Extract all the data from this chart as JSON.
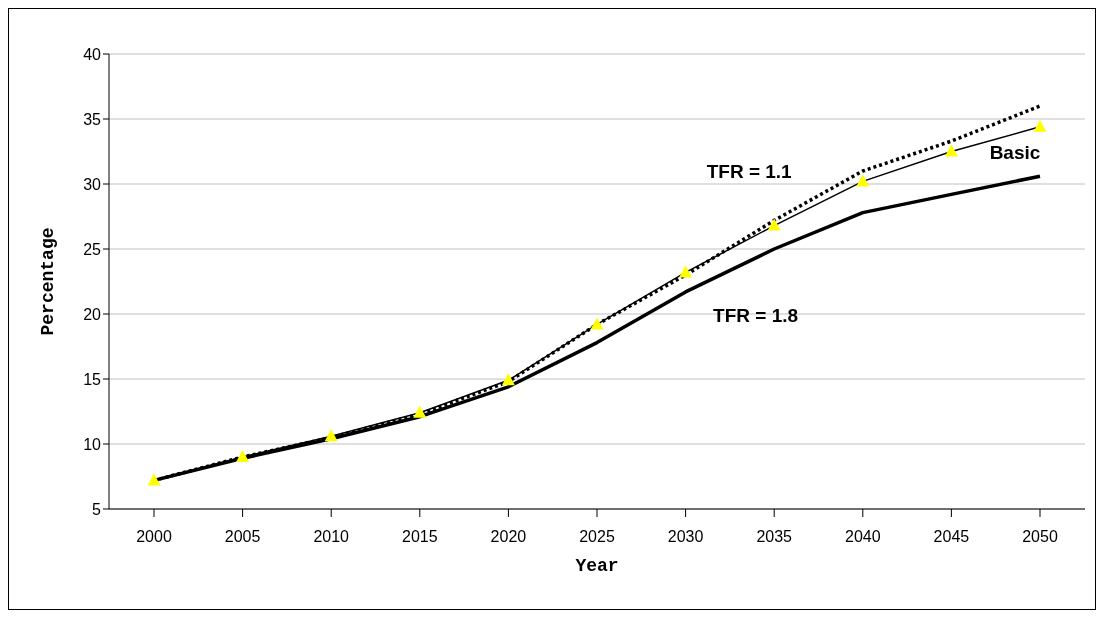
{
  "chart_data": {
    "type": "line",
    "xlabel": "Year",
    "ylabel": "Percentage",
    "categories": [
      "2000",
      "2005",
      "2010",
      "2015",
      "2020",
      "2025",
      "2030",
      "2035",
      "2040",
      "2045",
      "2050"
    ],
    "series": [
      {
        "name": "Basic",
        "color": "#000000",
        "marker": "triangle",
        "line_style": "solid",
        "values": [
          7.2,
          9.0,
          10.6,
          12.4,
          14.9,
          19.2,
          23.2,
          26.8,
          30.2,
          32.5,
          34.4
        ]
      },
      {
        "name": "TFR = 1.1",
        "color": "#000000",
        "marker": "none",
        "line_style": "dotted",
        "values": [
          7.2,
          9.0,
          10.5,
          12.3,
          14.8,
          19.2,
          23.0,
          27.2,
          31.0,
          33.3,
          36.0
        ]
      },
      {
        "name": "TFR = 1.8",
        "color": "#000000",
        "marker": "none",
        "line_style": "solid",
        "values": [
          7.2,
          8.9,
          10.4,
          12.1,
          14.4,
          17.8,
          21.7,
          25.0,
          27.8,
          29.2,
          30.6
        ]
      }
    ],
    "ylim": [
      5,
      40
    ],
    "yticks": [
      5,
      10,
      15,
      20,
      25,
      30,
      35,
      40
    ],
    "grid": "y"
  }
}
